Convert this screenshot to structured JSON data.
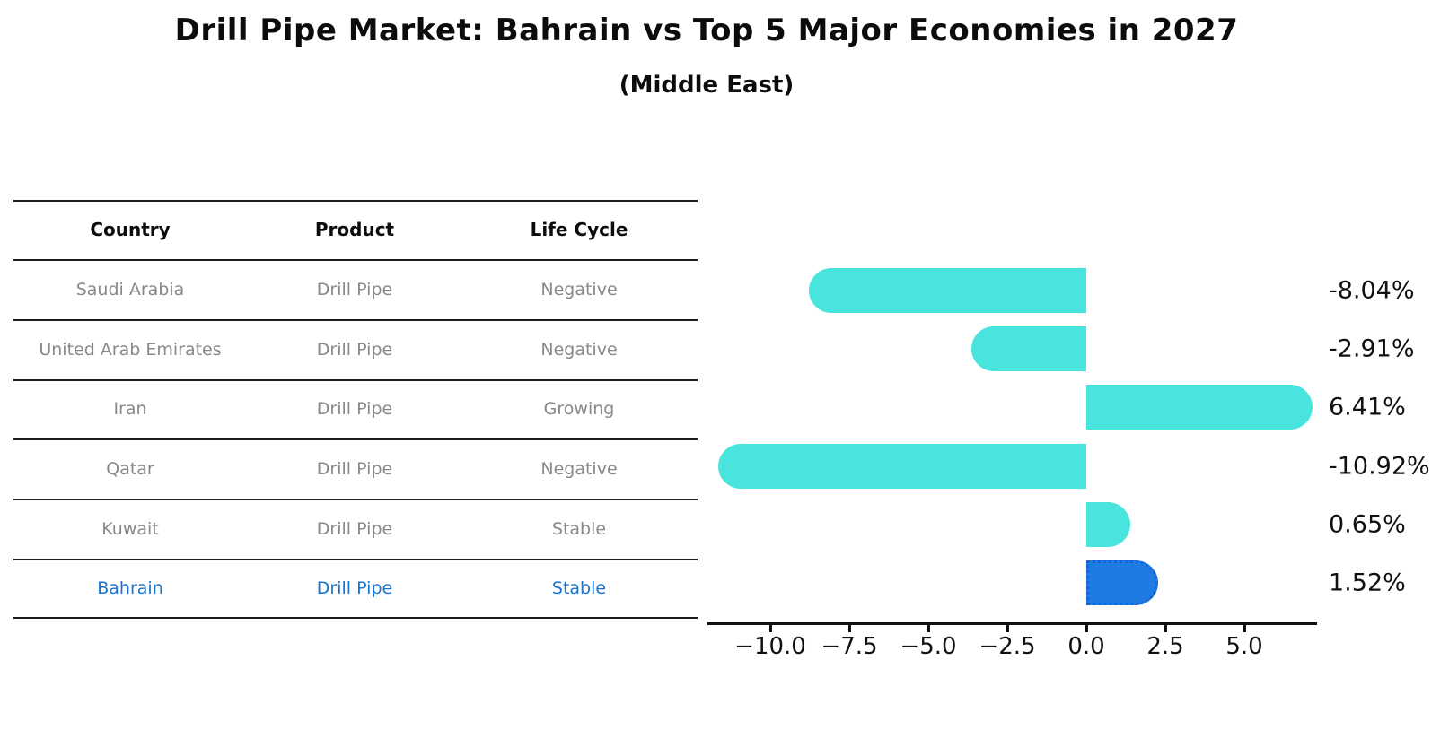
{
  "title": "Drill Pipe Market: Bahrain vs Top 5 Major Economies in 2027",
  "subtitle": "(Middle East)",
  "table": {
    "columns": [
      "Country",
      "Product",
      "Life Cycle"
    ],
    "rows": [
      {
        "country": "Saudi Arabia",
        "product": "Drill Pipe",
        "life_cycle": "Negative",
        "highlight": false
      },
      {
        "country": "United Arab Emirates",
        "product": "Drill Pipe",
        "life_cycle": "Negative",
        "highlight": false
      },
      {
        "country": "Iran",
        "product": "Drill Pipe",
        "life_cycle": "Growing",
        "highlight": false
      },
      {
        "country": "Qatar",
        "product": "Drill Pipe",
        "life_cycle": "Negative",
        "highlight": false
      },
      {
        "country": "Kuwait",
        "product": "Drill Pipe",
        "life_cycle": "Stable",
        "highlight": false
      },
      {
        "country": "Bahrain",
        "product": "Drill Pipe",
        "life_cycle": "Stable",
        "highlight": true
      }
    ]
  },
  "chart_data": {
    "type": "bar",
    "orientation": "horizontal",
    "title": "Drill Pipe Market: Bahrain vs Top 5 Major Economies in 2027 (Middle East)",
    "categories": [
      "Saudi Arabia",
      "United Arab Emirates",
      "Iran",
      "Qatar",
      "Kuwait",
      "Bahrain"
    ],
    "values": [
      -8.04,
      -2.91,
      6.41,
      -10.92,
      0.65,
      1.52
    ],
    "value_labels": [
      "-8.04%",
      "-2.91%",
      "6.41%",
      "-10.92%",
      "0.65%",
      "1.52%"
    ],
    "xlabel": "",
    "ylabel": "",
    "x_ticks": [
      -10.0,
      -7.5,
      -5.0,
      -2.5,
      0.0,
      2.5,
      5.0
    ],
    "x_tick_labels": [
      "−10.0",
      "−7.5",
      "−5.0",
      "−2.5",
      "0.0",
      "2.5",
      "5.0"
    ],
    "xlim": [
      -12.0,
      7.3
    ],
    "grid": false,
    "legend": false,
    "highlight_index": 5,
    "bar_color": "#49e4dd",
    "highlight_bar_color": "#1e7be3",
    "highlight_text_color": "#1a73d1"
  }
}
